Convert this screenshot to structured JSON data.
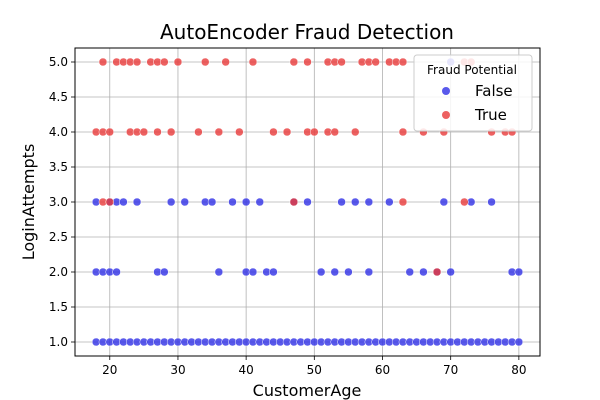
{
  "chart_data": {
    "type": "scatter",
    "title": "AutoEncoder Fraud Detection",
    "xlabel": "CustomerAge",
    "ylabel": "LoginAttempts",
    "xlim": [
      14.9,
      83.1
    ],
    "ylim": [
      0.8,
      5.2
    ],
    "xticks": [
      20,
      30,
      40,
      50,
      60,
      70,
      80
    ],
    "yticks": [
      1.0,
      1.5,
      2.0,
      2.5,
      3.0,
      3.5,
      4.0,
      4.5,
      5.0
    ],
    "grid": true,
    "legend": {
      "title": "Fraud Potential",
      "placement": "top-right",
      "entries": [
        "False",
        "True"
      ]
    },
    "series": [
      {
        "name": "False",
        "color": "#2f2fe6",
        "points": [
          [
            18,
            1
          ],
          [
            19,
            1
          ],
          [
            20,
            1
          ],
          [
            21,
            1
          ],
          [
            22,
            1
          ],
          [
            23,
            1
          ],
          [
            24,
            1
          ],
          [
            25,
            1
          ],
          [
            26,
            1
          ],
          [
            27,
            1
          ],
          [
            28,
            1
          ],
          [
            29,
            1
          ],
          [
            30,
            1
          ],
          [
            31,
            1
          ],
          [
            32,
            1
          ],
          [
            33,
            1
          ],
          [
            34,
            1
          ],
          [
            35,
            1
          ],
          [
            36,
            1
          ],
          [
            37,
            1
          ],
          [
            38,
            1
          ],
          [
            39,
            1
          ],
          [
            40,
            1
          ],
          [
            41,
            1
          ],
          [
            42,
            1
          ],
          [
            43,
            1
          ],
          [
            44,
            1
          ],
          [
            45,
            1
          ],
          [
            46,
            1
          ],
          [
            47,
            1
          ],
          [
            48,
            1
          ],
          [
            49,
            1
          ],
          [
            50,
            1
          ],
          [
            51,
            1
          ],
          [
            52,
            1
          ],
          [
            53,
            1
          ],
          [
            54,
            1
          ],
          [
            55,
            1
          ],
          [
            56,
            1
          ],
          [
            57,
            1
          ],
          [
            58,
            1
          ],
          [
            59,
            1
          ],
          [
            60,
            1
          ],
          [
            61,
            1
          ],
          [
            62,
            1
          ],
          [
            63,
            1
          ],
          [
            64,
            1
          ],
          [
            65,
            1
          ],
          [
            66,
            1
          ],
          [
            67,
            1
          ],
          [
            68,
            1
          ],
          [
            69,
            1
          ],
          [
            70,
            1
          ],
          [
            71,
            1
          ],
          [
            72,
            1
          ],
          [
            73,
            1
          ],
          [
            74,
            1
          ],
          [
            75,
            1
          ],
          [
            76,
            1
          ],
          [
            77,
            1
          ],
          [
            78,
            1
          ],
          [
            79,
            1
          ],
          [
            80,
            1
          ],
          [
            18,
            2
          ],
          [
            19,
            2
          ],
          [
            20,
            2
          ],
          [
            21,
            2
          ],
          [
            27,
            2
          ],
          [
            28,
            2
          ],
          [
            36,
            2
          ],
          [
            40,
            2
          ],
          [
            41,
            2
          ],
          [
            43,
            2
          ],
          [
            44,
            2
          ],
          [
            51,
            2
          ],
          [
            53,
            2
          ],
          [
            55,
            2
          ],
          [
            58,
            2
          ],
          [
            64,
            2
          ],
          [
            66,
            2
          ],
          [
            68,
            2
          ],
          [
            70,
            2
          ],
          [
            79,
            2
          ],
          [
            80,
            2
          ],
          [
            18,
            3
          ],
          [
            20,
            3
          ],
          [
            21,
            3
          ],
          [
            22,
            3
          ],
          [
            24,
            3
          ],
          [
            29,
            3
          ],
          [
            31,
            3
          ],
          [
            34,
            3
          ],
          [
            35,
            3
          ],
          [
            38,
            3
          ],
          [
            40,
            3
          ],
          [
            42,
            3
          ],
          [
            47,
            3
          ],
          [
            49,
            3
          ],
          [
            54,
            3
          ],
          [
            56,
            3
          ],
          [
            58,
            3
          ],
          [
            61,
            3
          ],
          [
            69,
            3
          ],
          [
            73,
            3
          ],
          [
            76,
            3
          ],
          [
            70,
            5
          ]
        ]
      },
      {
        "name": "True",
        "color": "#e83a3a",
        "points": [
          [
            19,
            5
          ],
          [
            21,
            5
          ],
          [
            22,
            5
          ],
          [
            23,
            5
          ],
          [
            24,
            5
          ],
          [
            26,
            5
          ],
          [
            27,
            5
          ],
          [
            28,
            5
          ],
          [
            30,
            5
          ],
          [
            34,
            5
          ],
          [
            37,
            5
          ],
          [
            41,
            5
          ],
          [
            47,
            5
          ],
          [
            49,
            5
          ],
          [
            52,
            5
          ],
          [
            53,
            5
          ],
          [
            54,
            5
          ],
          [
            57,
            5
          ],
          [
            58,
            5
          ],
          [
            59,
            5
          ],
          [
            61,
            5
          ],
          [
            62,
            5
          ],
          [
            63,
            5
          ],
          [
            72,
            5
          ],
          [
            73,
            5
          ],
          [
            18,
            4
          ],
          [
            19,
            4
          ],
          [
            20,
            4
          ],
          [
            23,
            4
          ],
          [
            24,
            4
          ],
          [
            25,
            4
          ],
          [
            27,
            4
          ],
          [
            29,
            4
          ],
          [
            33,
            4
          ],
          [
            36,
            4
          ],
          [
            39,
            4
          ],
          [
            44,
            4
          ],
          [
            46,
            4
          ],
          [
            49,
            4
          ],
          [
            50,
            4
          ],
          [
            52,
            4
          ],
          [
            53,
            4
          ],
          [
            56,
            4
          ],
          [
            63,
            4
          ],
          [
            66,
            4
          ],
          [
            69,
            4
          ],
          [
            76,
            4
          ],
          [
            78,
            4
          ],
          [
            79,
            4
          ],
          [
            19,
            3
          ],
          [
            20,
            3
          ],
          [
            47,
            3
          ],
          [
            63,
            3
          ],
          [
            72,
            3
          ],
          [
            68,
            2
          ]
        ]
      }
    ]
  }
}
